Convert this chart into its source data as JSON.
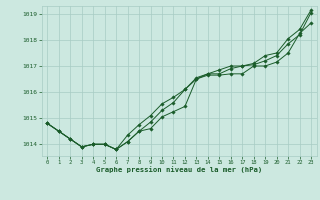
{
  "title": "Graphe pression niveau de la mer (hPa)",
  "background_color": "#cce8e0",
  "plot_bg_color": "#cce8e0",
  "grid_color": "#a8ccc4",
  "line_color": "#1a5c2a",
  "xlim": [
    -0.5,
    23.5
  ],
  "ylim": [
    1013.55,
    1019.3
  ],
  "yticks": [
    1014,
    1015,
    1016,
    1017,
    1018,
    1019
  ],
  "xticks": [
    0,
    1,
    2,
    3,
    4,
    5,
    6,
    7,
    8,
    9,
    10,
    11,
    12,
    13,
    14,
    15,
    16,
    17,
    18,
    19,
    20,
    21,
    22,
    23
  ],
  "series": [
    [
      1014.8,
      1014.5,
      1014.2,
      1013.9,
      1014.0,
      1014.0,
      1013.8,
      1014.1,
      1014.5,
      1014.6,
      1015.05,
      1015.25,
      1015.45,
      1016.5,
      1016.65,
      1016.65,
      1016.7,
      1016.7,
      1017.0,
      1017.0,
      1017.15,
      1017.5,
      1018.25,
      1018.65
    ],
    [
      1014.8,
      1014.5,
      1014.2,
      1013.9,
      1014.0,
      1014.0,
      1013.8,
      1014.1,
      1014.5,
      1014.85,
      1015.3,
      1015.6,
      1016.1,
      1016.5,
      1016.7,
      1016.7,
      1016.9,
      1017.0,
      1017.05,
      1017.2,
      1017.4,
      1017.85,
      1018.2,
      1019.05
    ],
    [
      1014.8,
      1014.5,
      1014.2,
      1013.9,
      1014.0,
      1014.0,
      1013.8,
      1014.35,
      1014.75,
      1015.1,
      1015.55,
      1015.8,
      1016.1,
      1016.55,
      1016.7,
      1016.85,
      1017.0,
      1017.0,
      1017.1,
      1017.4,
      1017.5,
      1018.05,
      1018.4,
      1019.15
    ]
  ]
}
